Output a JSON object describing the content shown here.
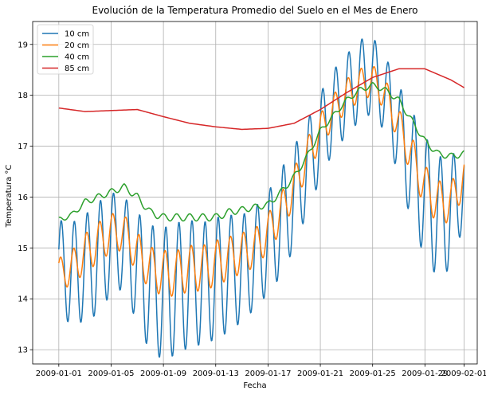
{
  "chart_data": {
    "type": "line",
    "title": "Evolución de la Temperatura Promedio del Suelo en el Mes de Enero",
    "xlabel": "Fecha",
    "ylabel": "Temperatura °C",
    "xlim": [
      "2008-12-30",
      "2009-02-02"
    ],
    "ylim": [
      12.72,
      19.45
    ],
    "grid": true,
    "legend_position": "top-left",
    "x_ticks": [
      "2009-01-01",
      "2009-01-05",
      "2009-01-09",
      "2009-01-13",
      "2009-01-17",
      "2009-01-21",
      "2009-01-25",
      "2009-01-29",
      "2009-02-01"
    ],
    "y_ticks": [
      13,
      14,
      15,
      16,
      17,
      18,
      19
    ],
    "series": [
      {
        "name": "10 cm",
        "color": "#1f77b4",
        "x": [
          "2009-01-01",
          "2009-01-02",
          "2009-01-03",
          "2009-01-04",
          "2009-01-05",
          "2009-01-06",
          "2009-01-07",
          "2009-01-08",
          "2009-01-09",
          "2009-01-10",
          "2009-01-11",
          "2009-01-12",
          "2009-01-13",
          "2009-01-14",
          "2009-01-15",
          "2009-01-16",
          "2009-01-17",
          "2009-01-18",
          "2009-01-19",
          "2009-01-20",
          "2009-01-21",
          "2009-01-22",
          "2009-01-23",
          "2009-01-24",
          "2009-01-25",
          "2009-01-26",
          "2009-01-27",
          "2009-01-28",
          "2009-01-29",
          "2009-01-30",
          "2009-01-31",
          "2009-02-01"
        ],
        "base": [
          14.6,
          14.5,
          14.6,
          14.8,
          15.1,
          15.1,
          14.6,
          14.2,
          14.1,
          14.2,
          14.3,
          14.3,
          14.4,
          14.5,
          14.6,
          14.8,
          15.1,
          15.5,
          16.0,
          16.6,
          17.2,
          17.7,
          18.0,
          18.3,
          18.4,
          18.0,
          17.3,
          16.6,
          16.0,
          15.6,
          15.7,
          16.3
        ],
        "amplitude": [
          0.95,
          1.0,
          1.05,
          1.1,
          1.0,
          0.9,
          1.1,
          1.25,
          1.3,
          1.3,
          1.25,
          1.2,
          1.2,
          1.15,
          1.05,
          1.0,
          1.0,
          1.05,
          1.0,
          0.9,
          0.85,
          0.8,
          0.8,
          0.8,
          0.75,
          0.75,
          0.9,
          1.1,
          1.2,
          1.2,
          1.1,
          0.8
        ],
        "phase": 0.4
      },
      {
        "name": "20 cm",
        "color": "#ff7f0e",
        "x": [
          "2009-01-01",
          "2009-01-02",
          "2009-01-03",
          "2009-01-04",
          "2009-01-05",
          "2009-01-06",
          "2009-01-07",
          "2009-01-08",
          "2009-01-09",
          "2009-01-10",
          "2009-01-11",
          "2009-01-12",
          "2009-01-13",
          "2009-01-14",
          "2009-01-15",
          "2009-01-16",
          "2009-01-17",
          "2009-01-18",
          "2009-01-19",
          "2009-01-20",
          "2009-01-21",
          "2009-01-22",
          "2009-01-23",
          "2009-01-24",
          "2009-01-25",
          "2009-01-26",
          "2009-01-27",
          "2009-01-28",
          "2009-01-29",
          "2009-01-30",
          "2009-01-31",
          "2009-02-01"
        ],
        "base": [
          14.5,
          14.6,
          14.9,
          15.1,
          15.3,
          15.3,
          14.9,
          14.6,
          14.5,
          14.5,
          14.6,
          14.6,
          14.7,
          14.8,
          14.9,
          15.0,
          15.3,
          15.7,
          16.2,
          16.8,
          17.3,
          17.7,
          18.0,
          18.2,
          18.3,
          18.0,
          17.4,
          16.8,
          16.2,
          15.9,
          15.9,
          16.4
        ],
        "amplitude": [
          0.3,
          0.35,
          0.38,
          0.4,
          0.38,
          0.35,
          0.4,
          0.42,
          0.45,
          0.45,
          0.45,
          0.45,
          0.45,
          0.42,
          0.4,
          0.38,
          0.38,
          0.38,
          0.38,
          0.36,
          0.34,
          0.32,
          0.32,
          0.32,
          0.3,
          0.3,
          0.34,
          0.38,
          0.42,
          0.42,
          0.4,
          0.35
        ],
        "phase": 0.75
      },
      {
        "name": "40 cm",
        "color": "#2ca02c",
        "x": [
          "2009-01-01",
          "2009-01-02",
          "2009-01-03",
          "2009-01-04",
          "2009-01-05",
          "2009-01-06",
          "2009-01-07",
          "2009-01-08",
          "2009-01-09",
          "2009-01-10",
          "2009-01-11",
          "2009-01-12",
          "2009-01-13",
          "2009-01-14",
          "2009-01-15",
          "2009-01-16",
          "2009-01-17",
          "2009-01-18",
          "2009-01-19",
          "2009-01-20",
          "2009-01-21",
          "2009-01-22",
          "2009-01-23",
          "2009-01-24",
          "2009-01-25",
          "2009-01-26",
          "2009-01-27",
          "2009-01-28",
          "2009-01-29",
          "2009-01-30",
          "2009-01-31",
          "2009-02-01"
        ],
        "base": [
          15.55,
          15.65,
          15.9,
          16.0,
          16.1,
          16.2,
          16.0,
          15.7,
          15.6,
          15.6,
          15.6,
          15.6,
          15.6,
          15.7,
          15.75,
          15.8,
          15.85,
          16.1,
          16.4,
          16.8,
          17.3,
          17.6,
          17.9,
          18.1,
          18.2,
          18.1,
          17.9,
          17.5,
          17.1,
          16.85,
          16.8,
          16.85
        ],
        "amplitude": [
          0.05,
          0.05,
          0.06,
          0.06,
          0.06,
          0.06,
          0.07,
          0.07,
          0.07,
          0.07,
          0.07,
          0.07,
          0.07,
          0.07,
          0.06,
          0.06,
          0.06,
          0.06,
          0.06,
          0.06,
          0.05,
          0.05,
          0.05,
          0.05,
          0.05,
          0.05,
          0.06,
          0.06,
          0.06,
          0.06,
          0.06,
          0.06
        ],
        "phase": 1.5
      },
      {
        "name": "85 cm",
        "color": "#d62728",
        "x": [
          "2009-01-01",
          "2009-01-03",
          "2009-01-05",
          "2009-01-07",
          "2009-01-09",
          "2009-01-11",
          "2009-01-13",
          "2009-01-15",
          "2009-01-17",
          "2009-01-19",
          "2009-01-21",
          "2009-01-23",
          "2009-01-25",
          "2009-01-27",
          "2009-01-29",
          "2009-01-31",
          "2009-02-01"
        ],
        "values": [
          17.75,
          17.68,
          17.7,
          17.72,
          17.58,
          17.45,
          17.38,
          17.33,
          17.35,
          17.45,
          17.72,
          18.05,
          18.35,
          18.52,
          18.52,
          18.3,
          18.15
        ]
      }
    ]
  }
}
